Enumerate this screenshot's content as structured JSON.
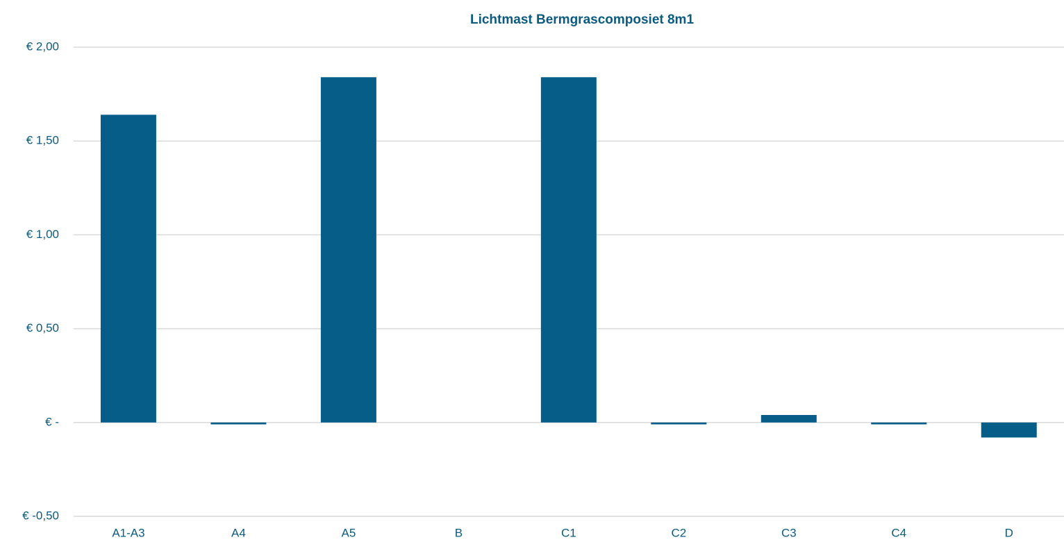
{
  "chart_data": {
    "type": "bar",
    "title": "Lichtmast Bermgrascomposiet 8m1",
    "categories": [
      "A1-A3",
      "A4",
      "A5",
      "B",
      "C1",
      "C2",
      "C3",
      "C4",
      "D"
    ],
    "values": [
      1.64,
      -0.01,
      1.84,
      0,
      1.84,
      -0.01,
      0.04,
      -0.01,
      -0.08
    ],
    "color": "#065e88",
    "ylim": [
      -0.5,
      2
    ],
    "yticks": [
      {
        "value": -0.5,
        "label": "€ -0,50"
      },
      {
        "value": 0,
        "label": "€ -"
      },
      {
        "value": 0.5,
        "label": "€ 0,50"
      },
      {
        "value": 1,
        "label": "€ 1,00"
      },
      {
        "value": 1.5,
        "label": "€ 1,50"
      },
      {
        "value": 2,
        "label": "€ 2,00"
      }
    ],
    "grid": true
  }
}
